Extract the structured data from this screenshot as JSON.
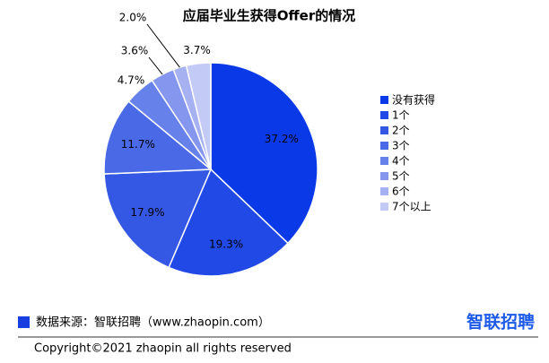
{
  "chart_data": {
    "type": "pie",
    "title": "应届毕业生获得Offer的情况",
    "categories": [
      "没有获得",
      "1个",
      "2个",
      "3个",
      "4个",
      "5个",
      "6个",
      "7个以上"
    ],
    "values": [
      37.2,
      19.3,
      17.9,
      11.7,
      4.7,
      3.6,
      2.0,
      3.7
    ],
    "value_labels": [
      "37.2%",
      "19.3%",
      "17.9%",
      "11.7%",
      "4.7%",
      "3.6%",
      "2.0%",
      "3.7%"
    ],
    "colors": [
      "#0a3ae8",
      "#2049e6",
      "#3458e4",
      "#4a69e6",
      "#6681ea",
      "#8596ee",
      "#a6b1f2",
      "#c4caf6"
    ],
    "legend": "right"
  },
  "source": "数据来源：智联招聘（www.zhaopin.com）",
  "logo": "智联招聘",
  "copyright": "Copyright©2021 zhaopin all rights reserved"
}
